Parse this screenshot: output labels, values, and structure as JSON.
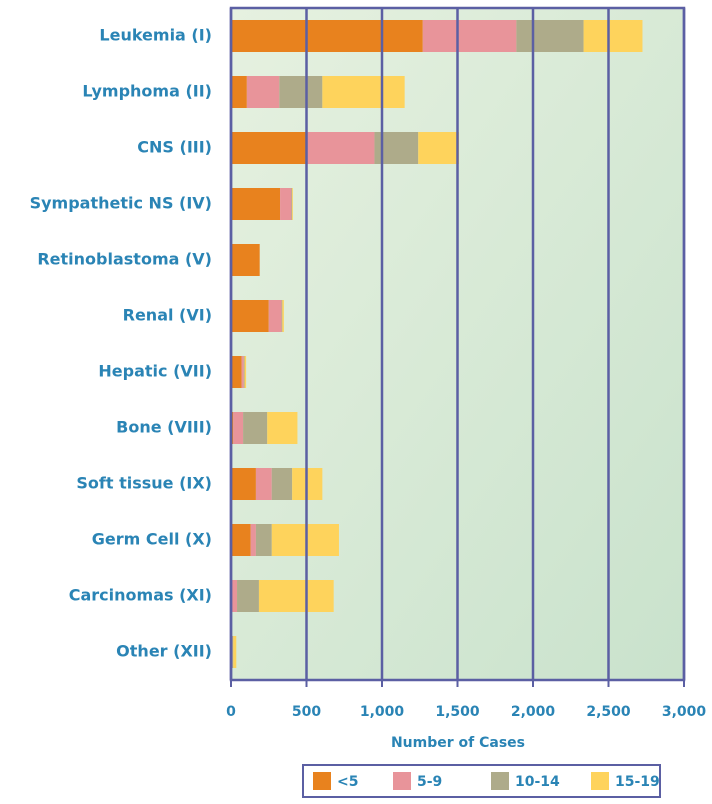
{
  "chart_data": {
    "type": "stacked_bar_horizontal",
    "categories": [
      "Leukemia (I)",
      "Lymphoma (II)",
      "CNS (III)",
      "Sympathetic NS (IV)",
      "Retinoblastoma (V)",
      "Renal (VI)",
      "Hepatic (VII)",
      "Bone (VIII)",
      "Soft tissue (IX)",
      "Germ Cell (X)",
      "Carcinomas (XI)",
      "Other (XII)"
    ],
    "series": [
      {
        "name": "<5",
        "color": "#e8821e",
        "values": [
          1270,
          105,
          505,
          325,
          190,
          250,
          70,
          15,
          165,
          130,
          5,
          5
        ]
      },
      {
        "name": "5-9",
        "color": "#e8949a",
        "values": [
          620,
          215,
          445,
          75,
          0,
          85,
          15,
          65,
          105,
          35,
          35,
          5
        ]
      },
      {
        "name": "10-14",
        "color": "#aeab8a",
        "values": [
          445,
          285,
          290,
          5,
          0,
          5,
          5,
          160,
          135,
          105,
          145,
          5
        ]
      },
      {
        "name": "15-19",
        "color": "#fed35c",
        "values": [
          390,
          545,
          270,
          5,
          0,
          10,
          10,
          200,
          200,
          445,
          495,
          20
        ]
      }
    ],
    "xlabel": "Number of Cases",
    "xlim": [
      0,
      3000
    ],
    "xticks": [
      0,
      500,
      {
        "value": 1000,
        "label": "1,000"
      },
      {
        "value": 1500,
        "label": "1,500"
      },
      {
        "value": 2000,
        "label": "2,000"
      },
      {
        "value": 2500,
        "label": "2,500"
      },
      {
        "value": 3000,
        "label": "3,000"
      }
    ],
    "grid": true,
    "legend": "bottom"
  }
}
